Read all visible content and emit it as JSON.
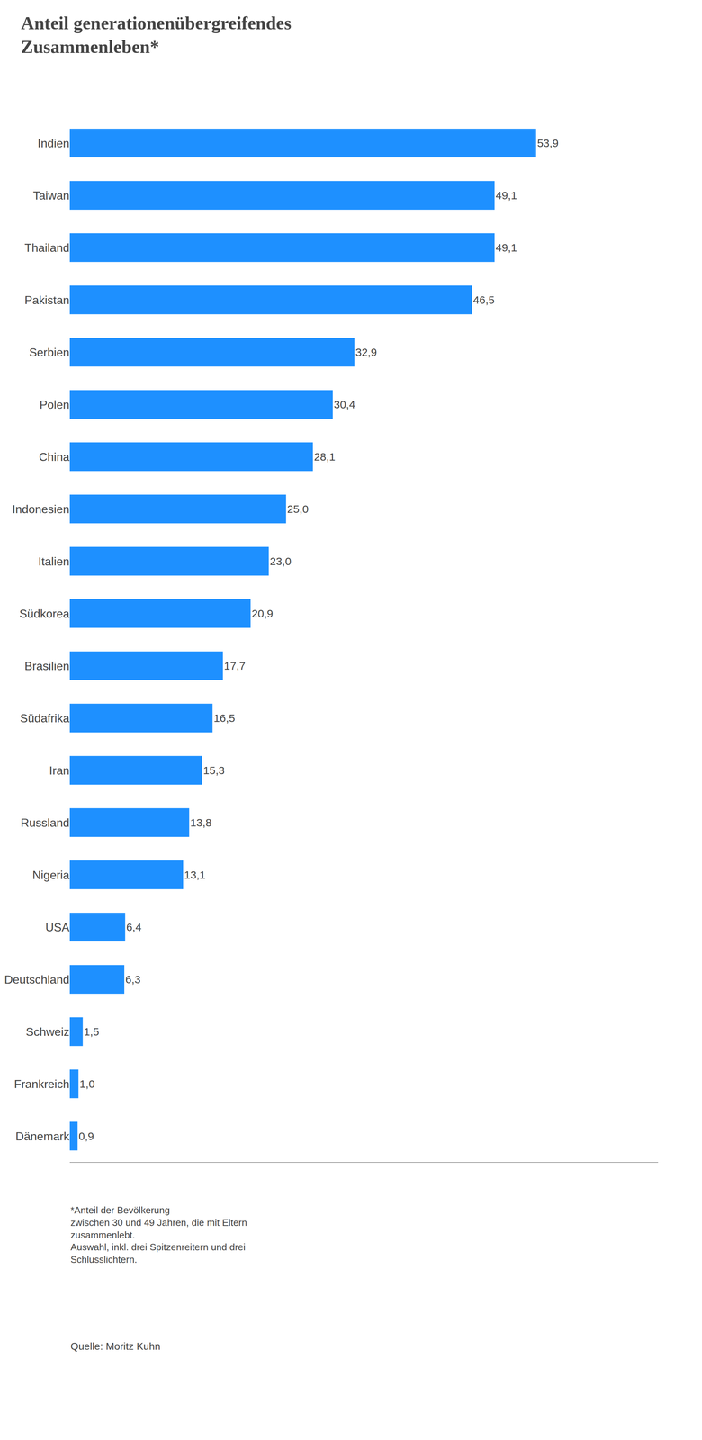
{
  "chart_data": {
    "type": "bar",
    "orientation": "horizontal",
    "title": "Anteil generationenübergreifendes\nZusammenleben*",
    "categories": [
      "Indien",
      "Taiwan",
      "Thailand",
      "Pakistan",
      "Serbien",
      "Polen",
      "China",
      "Indonesien",
      "Italien",
      "Südkorea",
      "Brasilien",
      "Südafrika",
      "Iran",
      "Russland",
      "Nigeria",
      "USA",
      "Deutschland",
      "Schweiz",
      "Frankreich",
      "Dänemark"
    ],
    "values": [
      53.9,
      49.1,
      49.1,
      46.5,
      32.9,
      30.4,
      28.1,
      25.0,
      23.0,
      20.9,
      17.7,
      16.5,
      15.3,
      13.8,
      13.1,
      6.4,
      6.3,
      1.5,
      1.0,
      0.9
    ],
    "value_labels": [
      "53,9",
      "49,1",
      "49,1",
      "46,5",
      "32,9",
      "30,4",
      "28,1",
      "25,0",
      "23,0",
      "20,9",
      "17,7",
      "16,5",
      "15,3",
      "13,8",
      "13,1",
      "6,4",
      "6,3",
      "1,5",
      "1,0",
      "0,9"
    ],
    "color": "#1E90FF",
    "xlim": [
      0,
      68
    ],
    "xticks": [],
    "tick_labels": "y",
    "data_labels": true,
    "grid": false,
    "annotations": [
      "*Anteil der Bevölkerung\nzwischen 30 und 49 Jahren, die mit Eltern\nzusammenlebt.\nAuswahl, inkl. drei Spitzenreitern und drei\nSchlusslichtern.",
      "Quelle: Moritz Kuhn"
    ]
  }
}
